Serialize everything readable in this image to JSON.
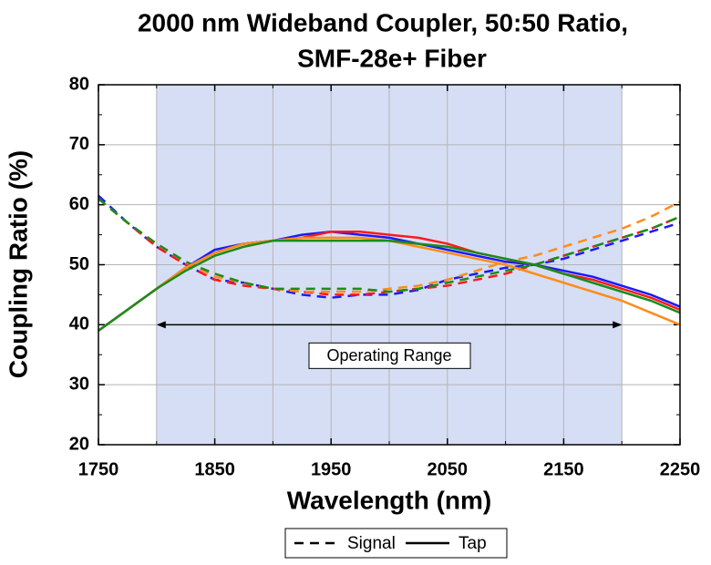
{
  "chart_data": {
    "type": "line",
    "title": [
      "2000 nm Wideband Coupler, 50:50 Ratio,",
      "SMF-28e+ Fiber"
    ],
    "x_label": "Wavelength (nm)",
    "y_label": "Coupling Ratio (%)",
    "xlim": [
      1750,
      2250
    ],
    "ylim": [
      20,
      80
    ],
    "xticks": [
      1750,
      1850,
      1950,
      2050,
      2150,
      2250
    ],
    "xminor_ticks": [
      1800,
      1900,
      2000,
      2100,
      2200
    ],
    "yticks": [
      20,
      30,
      40,
      50,
      60,
      70,
      80
    ],
    "grid": true,
    "shaded_range": [
      1800,
      2200
    ],
    "annotation": {
      "text": "Operating Range",
      "x": [
        1800,
        2200
      ],
      "y": 40
    },
    "legend": [
      {
        "label": "Signal",
        "dashed": true
      },
      {
        "label": "Tap",
        "dashed": false
      }
    ],
    "x": [
      1750,
      1775,
      1800,
      1825,
      1850,
      1875,
      1900,
      1925,
      1950,
      1975,
      2000,
      2025,
      2050,
      2075,
      2100,
      2125,
      2150,
      2175,
      2200,
      2225,
      2250
    ],
    "series": [
      {
        "color": "#1a1aff",
        "dashed": true,
        "values": [
          61.5,
          57,
          53,
          50,
          47.5,
          47,
          46,
          45,
          44.5,
          45,
          45,
          45.8,
          47.5,
          48.5,
          49.5,
          50,
          51,
          52.5,
          54,
          55.5,
          57
        ]
      },
      {
        "color": "#ff1a1a",
        "dashed": true,
        "values": [
          61,
          57,
          53,
          50,
          47.5,
          46.5,
          46,
          45.5,
          45,
          45,
          45.5,
          46,
          46.5,
          47.5,
          48.5,
          50,
          51.5,
          53,
          54.5,
          56,
          58
        ]
      },
      {
        "color": "#ff8c1a",
        "dashed": true,
        "values": [
          61,
          57,
          53.5,
          50.5,
          48,
          47,
          46,
          45.5,
          45.5,
          45.5,
          46,
          46.5,
          47.5,
          49,
          50.5,
          51.5,
          53,
          54.5,
          56,
          58,
          60.5
        ]
      },
      {
        "color": "#1a8c1a",
        "dashed": true,
        "values": [
          61,
          57,
          53.5,
          50.5,
          48.5,
          47,
          46,
          46,
          46,
          46,
          45.5,
          46,
          47,
          48,
          49,
          50,
          51.5,
          53,
          54.5,
          56,
          58
        ]
      },
      {
        "color": "#1a1aff",
        "dashed": false,
        "values": [
          39,
          42.5,
          46,
          49.5,
          52.5,
          53.5,
          54,
          55,
          55.5,
          55,
          54.5,
          53.5,
          52.5,
          51.5,
          50.5,
          50,
          49,
          48,
          46.5,
          45,
          43
        ]
      },
      {
        "color": "#ff1a1a",
        "dashed": false,
        "values": [
          39,
          42.5,
          46,
          49.5,
          52,
          53.5,
          54,
          54.5,
          55.5,
          55.5,
          55,
          54.5,
          53.5,
          52,
          51,
          50,
          48.5,
          47.5,
          46,
          44.5,
          42.5
        ]
      },
      {
        "color": "#ff8c1a",
        "dashed": false,
        "values": [
          39,
          42.5,
          46,
          49.5,
          52,
          53.5,
          54,
          54.5,
          54.5,
          54.5,
          54,
          53,
          52,
          51,
          50,
          48.5,
          47,
          45.5,
          44,
          42,
          40
        ]
      },
      {
        "color": "#1a8c1a",
        "dashed": false,
        "values": [
          39,
          42.5,
          46,
          49,
          51.5,
          53,
          54,
          54,
          54,
          54,
          54,
          53.5,
          53,
          52,
          51,
          50,
          48.5,
          47,
          45.5,
          44,
          42
        ]
      }
    ]
  }
}
